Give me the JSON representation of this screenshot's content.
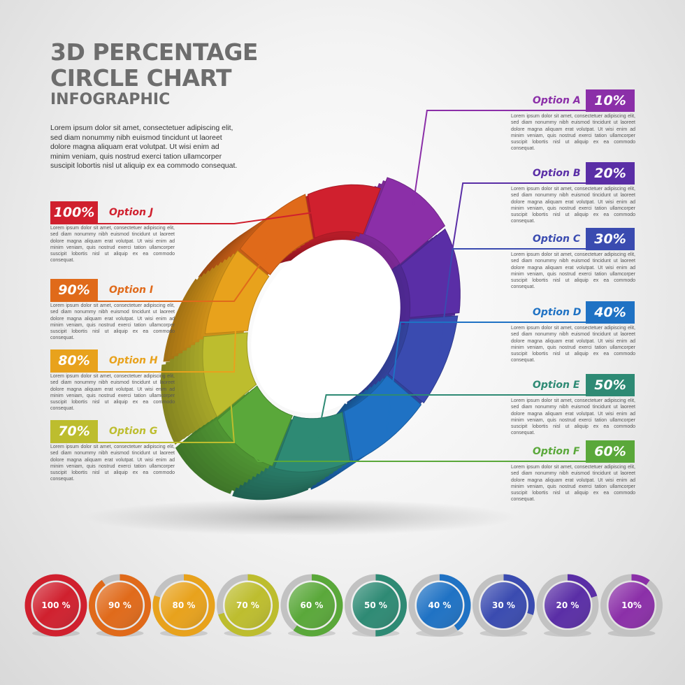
{
  "title": {
    "line1": "3D PERCENTAGE",
    "line2": "CIRCLE CHART",
    "line3": "INFOGRAPHIC"
  },
  "intro": "Lorem ipsum dolor sit amet, consectetuer adipiscing elit, sed diam nonummy nibh euismod tincidunt ut laoreet dolore magna aliquam erat volutpat. Ut wisi enim ad minim veniam, quis nostrud exerci tation ullamcorper suscipit lobortis nisl ut aliquip ex ea commodo consequat.",
  "body_text": "Lorem ipsum dolor sit amet, consectetuer adipiscing elit, sed diam nonummy nibh euismod tincidunt ut laoreet dolore magna aliquam erat volutpat. Ut wisi enim ad minim veniam, quis nostrud exerci tation ullamcorper suscipit lobortis nisl ut aliquip ex ea commodo consequat.",
  "chart_data": {
    "type": "pie",
    "title": "3D PERCENTAGE CIRCLE CHART",
    "categories": [
      "Option A",
      "Option B",
      "Option C",
      "Option D",
      "Option E",
      "Option F",
      "Option G",
      "Option H",
      "Option I",
      "Option J"
    ],
    "values": [
      10,
      20,
      30,
      40,
      50,
      60,
      70,
      80,
      90,
      100
    ],
    "value_labels": [
      "10%",
      "20%",
      "30%",
      "40%",
      "50%",
      "60%",
      "70%",
      "80%",
      "90%",
      "100%"
    ],
    "colors": [
      "#8b2fa8",
      "#5a2ea6",
      "#3a4bb0",
      "#1f72c4",
      "#2e8a74",
      "#5aa83a",
      "#bdbd2e",
      "#e8a21c",
      "#e06a1a",
      "#d0202e"
    ],
    "mini_labels": [
      "100 %",
      "90 %",
      "80 %",
      "70 %",
      "60 %",
      "50 %",
      "40 %",
      "30 %",
      "20 %",
      "10%"
    ],
    "mini_values": [
      100,
      90,
      80,
      70,
      60,
      50,
      40,
      30,
      20,
      10
    ],
    "mini_colors": [
      "#d0202e",
      "#e06a1a",
      "#e8a21c",
      "#bdbd2e",
      "#5aa83a",
      "#2e8a74",
      "#1f72c4",
      "#3a4bb0",
      "#5a2ea6",
      "#8b2fa8"
    ]
  }
}
